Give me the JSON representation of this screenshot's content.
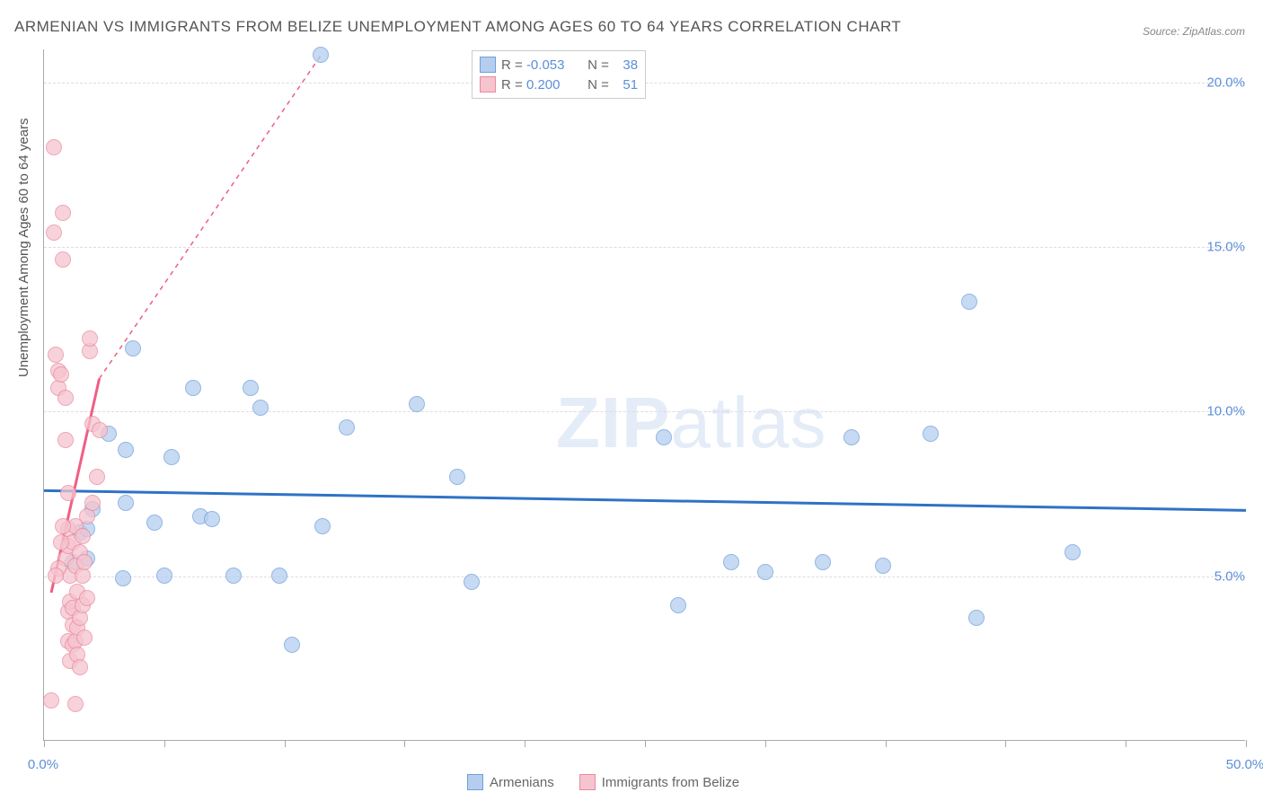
{
  "title": "ARMENIAN VS IMMIGRANTS FROM BELIZE UNEMPLOYMENT AMONG AGES 60 TO 64 YEARS CORRELATION CHART",
  "source": "Source: ZipAtlas.com",
  "watermark_zip": "ZIP",
  "watermark_atlas": "atlas",
  "ylabel": "Unemployment Among Ages 60 to 64 years",
  "chart": {
    "type": "scatter",
    "xlim": [
      0,
      50
    ],
    "ylim": [
      0,
      21
    ],
    "xticks": [
      0,
      5,
      10,
      15,
      20,
      25,
      30,
      35,
      40,
      45,
      50
    ],
    "xtick_labels": {
      "0": "0.0%",
      "50": "50.0%"
    },
    "yticks": [
      5,
      10,
      15,
      20
    ],
    "ytick_labels": {
      "5": "5.0%",
      "10": "10.0%",
      "15": "15.0%",
      "20": "20.0%"
    },
    "background_color": "#ffffff",
    "grid_color": "#dddddd",
    "axis_color": "#aaaaaa",
    "series": [
      {
        "name": "Armenians",
        "fill": "#b5ceef",
        "stroke": "#6f9fd8",
        "trend_color": "#2f72c6",
        "trend_style": "solid",
        "R": "-0.053",
        "N": "38",
        "points": [
          [
            11.5,
            20.8
          ],
          [
            1.5,
            6.3
          ],
          [
            1.8,
            6.4
          ],
          [
            1.8,
            5.5
          ],
          [
            2.0,
            7.0
          ],
          [
            2.7,
            9.3
          ],
          [
            3.3,
            4.9
          ],
          [
            3.4,
            7.2
          ],
          [
            3.4,
            8.8
          ],
          [
            3.7,
            11.9
          ],
          [
            4.6,
            6.6
          ],
          [
            5.0,
            5.0
          ],
          [
            5.3,
            8.6
          ],
          [
            6.2,
            10.7
          ],
          [
            6.5,
            6.8
          ],
          [
            7.0,
            6.7
          ],
          [
            7.9,
            5.0
          ],
          [
            8.6,
            10.7
          ],
          [
            9.0,
            10.1
          ],
          [
            9.8,
            5.0
          ],
          [
            10.3,
            2.9
          ],
          [
            11.6,
            6.5
          ],
          [
            12.6,
            9.5
          ],
          [
            15.5,
            10.2
          ],
          [
            17.2,
            8.0
          ],
          [
            17.8,
            4.8
          ],
          [
            25.8,
            9.2
          ],
          [
            26.4,
            4.1
          ],
          [
            28.6,
            5.4
          ],
          [
            30.0,
            5.1
          ],
          [
            32.4,
            5.4
          ],
          [
            33.6,
            9.2
          ],
          [
            34.9,
            5.3
          ],
          [
            36.9,
            9.3
          ],
          [
            38.5,
            13.3
          ],
          [
            38.8,
            3.7
          ],
          [
            42.8,
            5.7
          ],
          [
            1.2,
            5.4
          ]
        ],
        "trend": {
          "x1": 0,
          "y1": 7.6,
          "x2": 50,
          "y2": 7.0
        }
      },
      {
        "name": "Immigrants from Belize",
        "fill": "#f6c4ce",
        "stroke": "#e78ba0",
        "trend_color": "#ef5f85",
        "trend_style_solid_then_dashed": true,
        "R": "0.200",
        "N": "51",
        "points": [
          [
            0.3,
            1.2
          ],
          [
            0.4,
            15.4
          ],
          [
            0.4,
            18.0
          ],
          [
            0.5,
            11.7
          ],
          [
            0.6,
            10.7
          ],
          [
            0.6,
            11.2
          ],
          [
            0.7,
            11.1
          ],
          [
            0.8,
            14.6
          ],
          [
            0.8,
            16.0
          ],
          [
            0.9,
            5.5
          ],
          [
            0.9,
            9.1
          ],
          [
            0.9,
            10.4
          ],
          [
            1.0,
            3.0
          ],
          [
            1.0,
            3.9
          ],
          [
            1.0,
            5.9
          ],
          [
            1.0,
            6.4
          ],
          [
            1.0,
            7.5
          ],
          [
            1.1,
            2.4
          ],
          [
            1.1,
            4.2
          ],
          [
            1.1,
            5.0
          ],
          [
            1.2,
            2.9
          ],
          [
            1.2,
            3.5
          ],
          [
            1.2,
            4.0
          ],
          [
            1.2,
            6.0
          ],
          [
            1.3,
            3.0
          ],
          [
            1.3,
            5.3
          ],
          [
            1.3,
            6.5
          ],
          [
            1.4,
            2.6
          ],
          [
            1.4,
            3.4
          ],
          [
            1.4,
            4.5
          ],
          [
            1.5,
            2.2
          ],
          [
            1.5,
            3.7
          ],
          [
            1.5,
            5.7
          ],
          [
            1.6,
            4.1
          ],
          [
            1.6,
            5.0
          ],
          [
            1.6,
            6.2
          ],
          [
            1.7,
            3.1
          ],
          [
            1.7,
            5.4
          ],
          [
            1.8,
            4.3
          ],
          [
            1.8,
            6.8
          ],
          [
            1.9,
            11.8
          ],
          [
            1.9,
            12.2
          ],
          [
            2.0,
            7.2
          ],
          [
            2.0,
            9.6
          ],
          [
            2.2,
            8.0
          ],
          [
            1.3,
            1.1
          ],
          [
            2.3,
            9.4
          ],
          [
            0.6,
            5.2
          ],
          [
            0.7,
            6.0
          ],
          [
            0.8,
            6.5
          ],
          [
            0.5,
            5.0
          ]
        ],
        "trend_segments": [
          {
            "x1": 0.3,
            "y1": 4.5,
            "x2": 2.3,
            "y2": 11.0,
            "dashed": false
          },
          {
            "x1": 2.3,
            "y1": 11.0,
            "x2": 11.5,
            "y2": 20.8,
            "dashed": true
          }
        ]
      }
    ]
  },
  "legend_top": {
    "R_label": "R =",
    "N_label": "N ="
  },
  "legend_bottom": [
    {
      "label": "Armenians",
      "series_index": 0
    },
    {
      "label": "Immigrants from Belize",
      "series_index": 1
    }
  ],
  "colors": {
    "text_title": "#555555",
    "text_axis": "#5b8fd8",
    "text_body": "#666666"
  }
}
